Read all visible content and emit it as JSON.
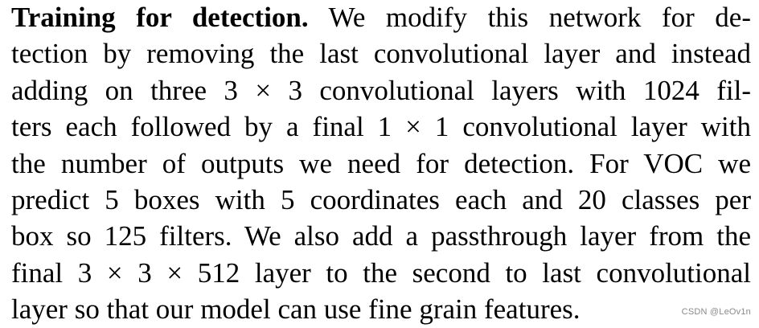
{
  "paragraph": {
    "heading": "Training for detection.",
    "lines": [
      "We modify this network for de-",
      "tection by removing the last convolutional layer and instead",
      "adding on three 3 × 3 convolutional layers with 1024 fil-",
      "ters each followed by a final 1 × 1 convolutional layer with",
      "the number of outputs we need for detection. For VOC we",
      "predict 5 boxes with 5 coordinates each and 20 classes per",
      "box so 125 filters. We also add a passthrough layer from the",
      "final 3 × 3 × 512 layer to the second to last convolutional",
      "layer so that our model can use fine grain features."
    ]
  },
  "watermark": "CSDN @LeOv1n"
}
